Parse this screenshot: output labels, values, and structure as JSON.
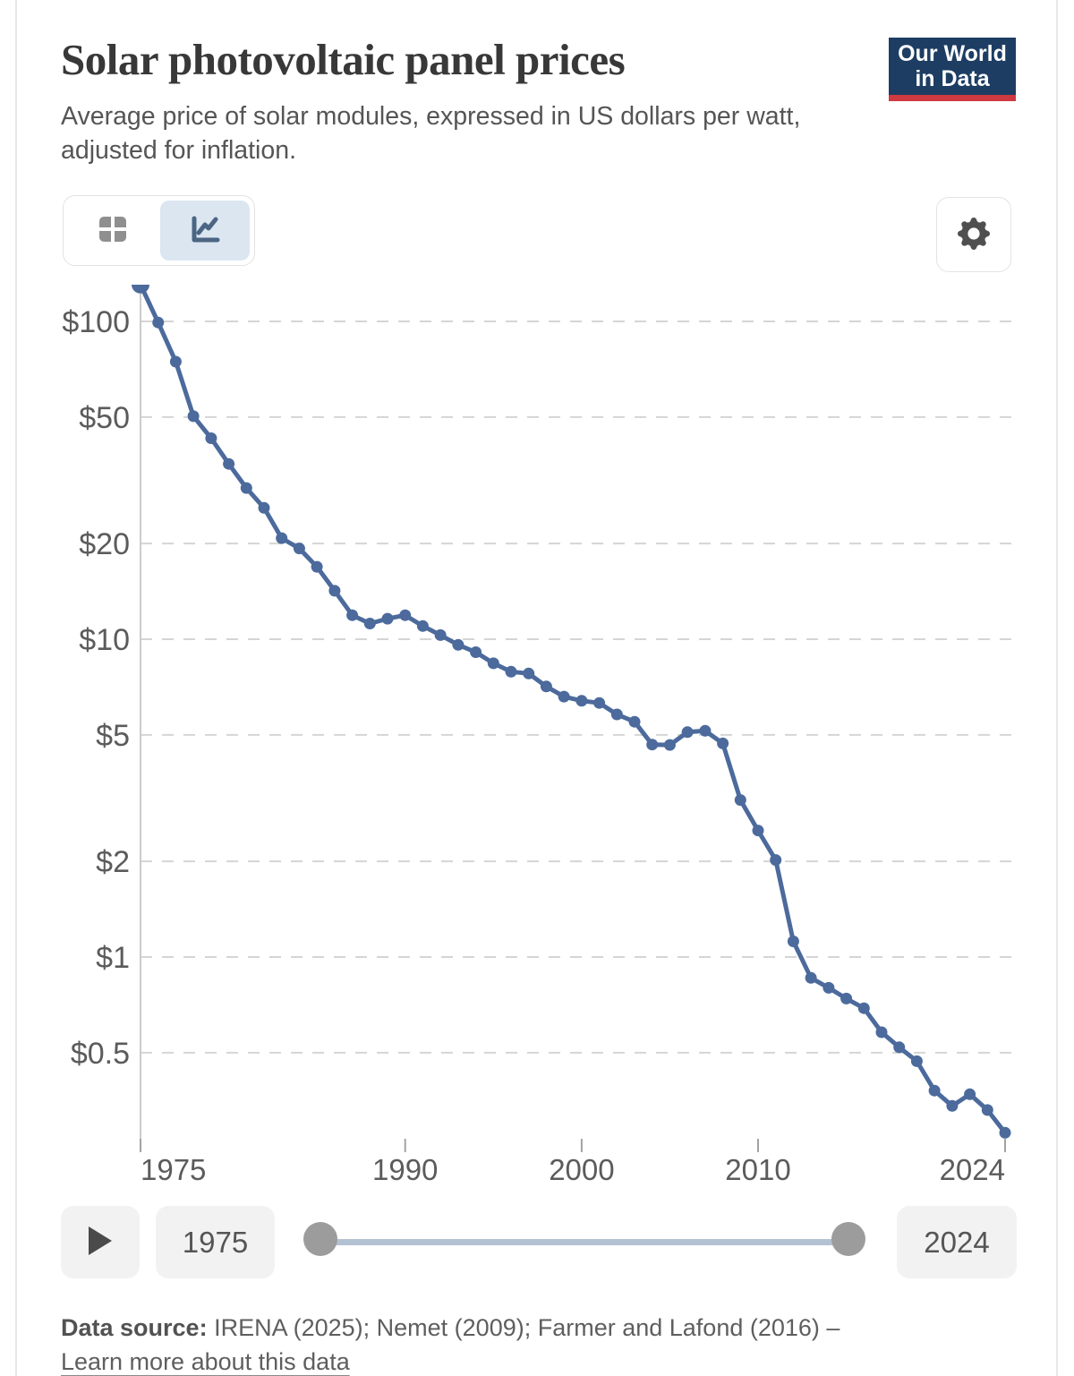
{
  "header": {
    "title": "Solar photovoltaic panel prices",
    "subtitle": "Average price of solar modules, expressed in US dollars per watt, adjusted for inflation.",
    "logo": {
      "line1": "Our World",
      "line2": "in Data",
      "bg_color": "#1d3d63",
      "accent_color": "#cf3a41"
    }
  },
  "toolbar": {
    "tabs": [
      {
        "id": "table",
        "icon": "table-icon",
        "active": false
      },
      {
        "id": "chart",
        "icon": "line-chart-icon",
        "active": true
      }
    ],
    "settings_icon": "gear-icon",
    "active_tab_bg": "#dbe6f1"
  },
  "chart_data": {
    "type": "line",
    "title": "Solar photovoltaic panel prices",
    "xlabel": "",
    "ylabel": "US dollars per watt",
    "yscale": "log",
    "grid": "dashed-horizontal",
    "legend": "none",
    "line_color": "#4c6a9c",
    "marker": "circle",
    "x_ticks": [
      1975,
      1990,
      2000,
      2010,
      2024
    ],
    "y_ticks": [
      100,
      50,
      20,
      10,
      5,
      2,
      1,
      0.5
    ],
    "y_tick_labels": [
      "$100",
      "$50",
      "$20",
      "$10",
      "$5",
      "$2",
      "$1",
      "$0.5"
    ],
    "ylim": [
      0.25,
      135
    ],
    "x": [
      1975,
      1976,
      1977,
      1978,
      1979,
      1980,
      1981,
      1982,
      1983,
      1984,
      1985,
      1986,
      1987,
      1988,
      1989,
      1990,
      1991,
      1992,
      1993,
      1994,
      1995,
      1996,
      1997,
      1998,
      1999,
      2000,
      2001,
      2002,
      2003,
      2004,
      2005,
      2006,
      2007,
      2008,
      2009,
      2010,
      2011,
      2012,
      2013,
      2014,
      2015,
      2016,
      2017,
      2018,
      2019,
      2020,
      2021,
      2022,
      2023,
      2024
    ],
    "values": [
      130.6,
      99.2,
      74.7,
      50.3,
      42.9,
      35.6,
      29.9,
      25.9,
      20.8,
      19.3,
      16.9,
      14.2,
      11.9,
      11.2,
      11.6,
      11.9,
      11.0,
      10.3,
      9.6,
      9.1,
      8.4,
      7.9,
      7.8,
      7.1,
      6.6,
      6.4,
      6.3,
      5.8,
      5.5,
      4.66,
      4.65,
      5.1,
      5.15,
      4.7,
      3.12,
      2.5,
      2.02,
      1.12,
      0.86,
      0.8,
      0.74,
      0.69,
      0.58,
      0.52,
      0.47,
      0.38,
      0.34,
      0.37,
      0.33,
      0.28
    ]
  },
  "timeline": {
    "start_year": "1975",
    "end_year": "2024",
    "track_color": "#b3c2d2",
    "handle_color": "#9c9c9c"
  },
  "footer": {
    "source_label": "Data source:",
    "source_text": " IRENA (2025); Nemet (2009); Farmer and Lafond (2016) – ",
    "link": "Learn more about this data"
  }
}
